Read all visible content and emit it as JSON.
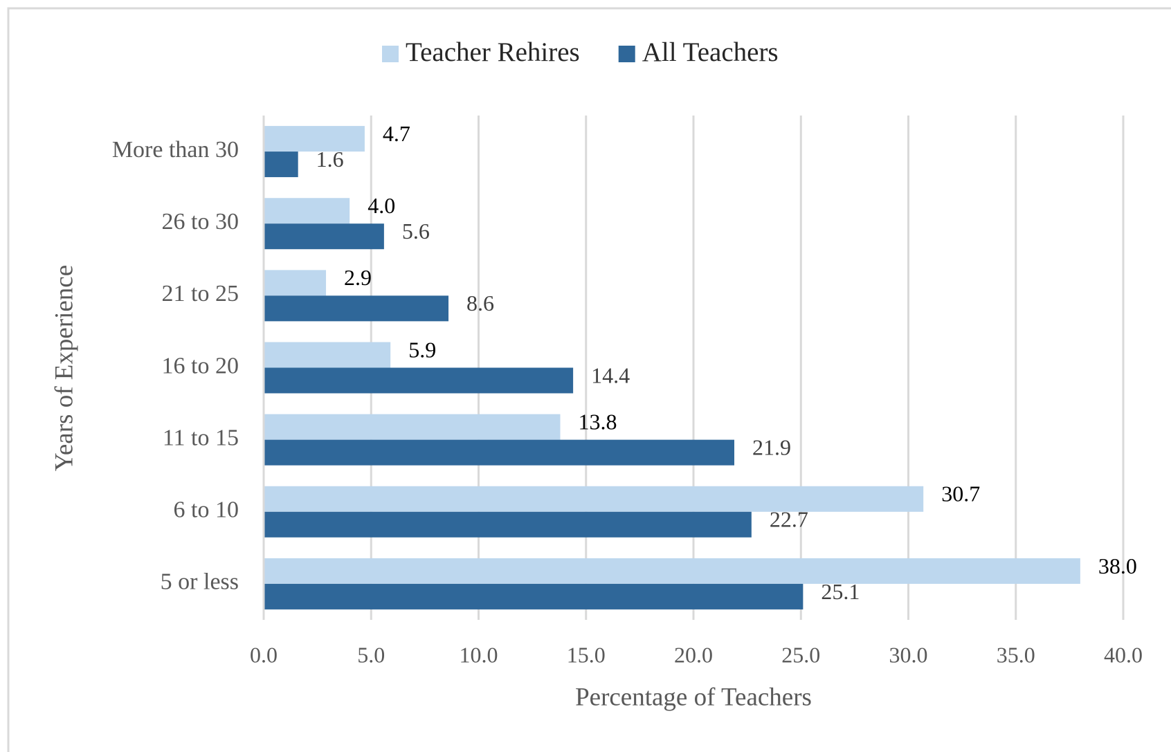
{
  "chart_data": {
    "type": "bar",
    "orientation": "horizontal",
    "x_label": "Percentage  of Teachers",
    "y_label": "Years of Experience",
    "categories": [
      "More than 30",
      "26 to 30",
      "21 to 25",
      "16 to 20",
      "11 to 15",
      "6 to 10",
      "5 or less"
    ],
    "series": [
      {
        "name": "Teacher Rehires",
        "color": "#bdd7ee",
        "values": [
          4.7,
          4.0,
          2.9,
          5.9,
          13.8,
          30.7,
          38.0
        ],
        "value_labels": [
          "4.7",
          "4.0",
          "2.9",
          "5.9",
          "13.8",
          "30.7",
          "38.0"
        ]
      },
      {
        "name": "All Teachers",
        "color": "#2f6799",
        "values": [
          1.6,
          5.6,
          8.6,
          14.4,
          21.9,
          22.7,
          25.1
        ],
        "value_labels": [
          "1.6",
          "5.6",
          "8.6",
          "14.4",
          "21.9",
          "22.7",
          "25.1"
        ]
      }
    ],
    "xlim": [
      0,
      40
    ],
    "xticks": [
      {
        "value": 0,
        "label": "0.0"
      },
      {
        "value": 5,
        "label": "5.0"
      },
      {
        "value": 10,
        "label": "10.0"
      },
      {
        "value": 15,
        "label": "15.0"
      },
      {
        "value": 20,
        "label": "20.0"
      },
      {
        "value": 25,
        "label": "25.0"
      },
      {
        "value": 30,
        "label": "30.0"
      },
      {
        "value": 35,
        "label": "35.0"
      },
      {
        "value": 40,
        "label": "40.0"
      }
    ],
    "grid": true,
    "legend": "top"
  }
}
